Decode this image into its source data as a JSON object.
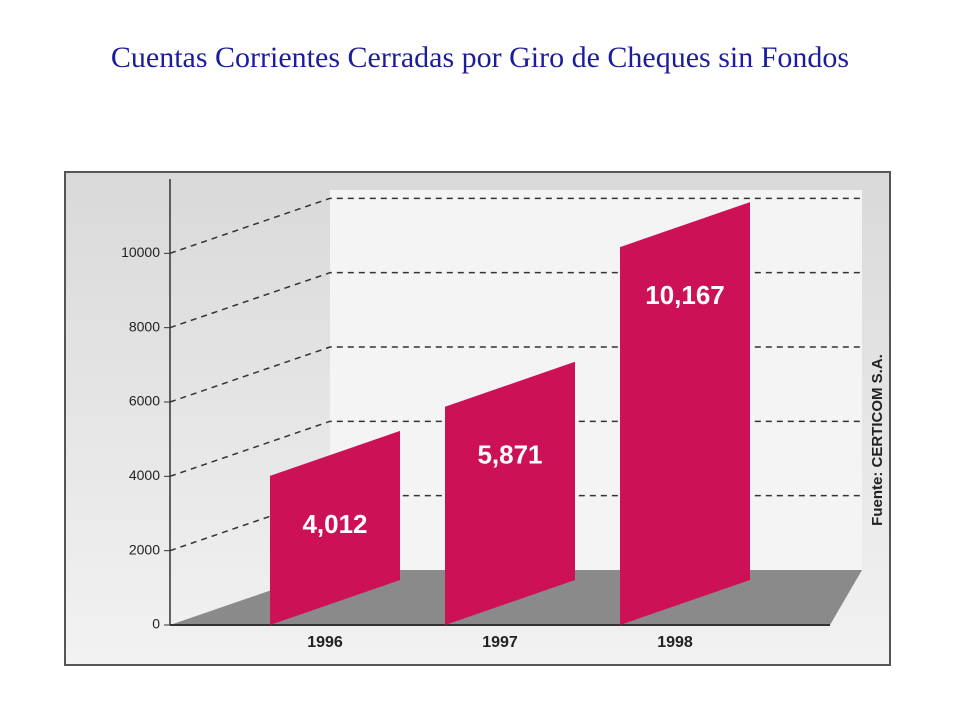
{
  "chart_data": {
    "type": "bar3d",
    "title": "Cuentas Corrientes Cerradas por Giro de Cheques sin Fondos",
    "annotation": "Fuente: CERTICOM S.A.",
    "categories": [
      "1996",
      "1997",
      "1998"
    ],
    "values": [
      4012,
      5871,
      10167
    ],
    "value_labels": [
      "4,012",
      "5,871",
      "10,167"
    ],
    "color": "#cc1157",
    "ylim": [
      0,
      12000
    ],
    "yticks": [
      0,
      2000,
      4000,
      6000,
      8000,
      10000
    ],
    "grid": true
  }
}
